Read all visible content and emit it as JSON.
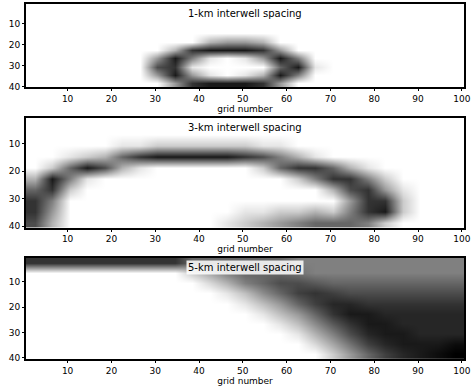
{
  "chart_data": [
    {
      "type": "heatmap",
      "title": "1-km interwell spacing",
      "x_label": "grid number",
      "xlim": [
        0.5,
        100.5
      ],
      "ylim": [
        40.5,
        0.5
      ],
      "xticks": [
        10,
        20,
        30,
        40,
        50,
        60,
        70,
        80,
        90,
        100
      ],
      "yticks": [
        10,
        20,
        30,
        40
      ],
      "zlim": [
        0,
        1
      ],
      "x": [
        2.5,
        6.5,
        10.5,
        14.5,
        18.5,
        22.5,
        26.5,
        30.5,
        34.5,
        38.5,
        42.5,
        46.5,
        50.5,
        54.5,
        58.5,
        62.5,
        66.5,
        70.5,
        74.5,
        78.5,
        82.5,
        86.5,
        90.5,
        94.5,
        98.5
      ],
      "y": [
        2.5,
        6.5,
        10.5,
        14.5,
        18.5,
        22.5,
        26.5,
        30.5,
        34.5,
        38.5
      ],
      "cells": [
        [
          0,
          0,
          0,
          0,
          0,
          0,
          0,
          0,
          0,
          0,
          0,
          0,
          0,
          0,
          0,
          0,
          0,
          0,
          0,
          0,
          0,
          0,
          0,
          0,
          0
        ],
        [
          0,
          0,
          0,
          0,
          0,
          0,
          0,
          0,
          0,
          0,
          0,
          0,
          0,
          0,
          0,
          0,
          0,
          0,
          0,
          0,
          0,
          0,
          0,
          0,
          0
        ],
        [
          0,
          0,
          0,
          0,
          0,
          0,
          0,
          0,
          0,
          0,
          0,
          0,
          0,
          0,
          0,
          0,
          0,
          0,
          0,
          0,
          0,
          0,
          0,
          0,
          0
        ],
        [
          0,
          0,
          0,
          0,
          0,
          0,
          0,
          0,
          0,
          0,
          0,
          0,
          0,
          0,
          0,
          0,
          0,
          0,
          0,
          0,
          0,
          0,
          0,
          0,
          0
        ],
        [
          0,
          0,
          0,
          0,
          0,
          0,
          0,
          0,
          0,
          0,
          0.3,
          0.4,
          0.4,
          0.3,
          0,
          0,
          0,
          0,
          0,
          0,
          0,
          0,
          0,
          0,
          0
        ],
        [
          0,
          0,
          0,
          0,
          0,
          0,
          0,
          0,
          0.3,
          0.8,
          0.9,
          0.9,
          0.9,
          0.8,
          0.4,
          0,
          0,
          0,
          0,
          0,
          0,
          0,
          0,
          0,
          0
        ],
        [
          0,
          0,
          0,
          0,
          0,
          0,
          0,
          0.4,
          0.9,
          0.5,
          0.1,
          0,
          0.1,
          0.4,
          0.9,
          0.5,
          0,
          0,
          0,
          0,
          0,
          0,
          0,
          0,
          0
        ],
        [
          0,
          0,
          0,
          0,
          0,
          0,
          0,
          0.7,
          0.8,
          0.1,
          0,
          0,
          0,
          0,
          0.6,
          0.9,
          0.1,
          0,
          0,
          0,
          0,
          0,
          0,
          0,
          0
        ],
        [
          0,
          0,
          0,
          0,
          0,
          0,
          0,
          0.4,
          0.9,
          0.4,
          0.1,
          0,
          0.1,
          0.3,
          0.9,
          0.5,
          0,
          0,
          0,
          0,
          0,
          0,
          0,
          0,
          0
        ],
        [
          0,
          0,
          0,
          0,
          0,
          0,
          0,
          0,
          0.4,
          0.8,
          0.9,
          0.9,
          0.9,
          0.8,
          0.4,
          0,
          0,
          0,
          0,
          0,
          0,
          0,
          0,
          0,
          0
        ]
      ]
    },
    {
      "type": "heatmap",
      "title": "3-km interwell spacing",
      "x_label": "grid number",
      "xlim": [
        0.5,
        100.5
      ],
      "ylim": [
        40.5,
        0.5
      ],
      "xticks": [
        10,
        20,
        30,
        40,
        50,
        60,
        70,
        80,
        90,
        100
      ],
      "yticks": [
        10,
        20,
        30,
        40
      ],
      "zlim": [
        0,
        1
      ],
      "x": [
        2.5,
        6.5,
        10.5,
        14.5,
        18.5,
        22.5,
        26.5,
        30.5,
        34.5,
        38.5,
        42.5,
        46.5,
        50.5,
        54.5,
        58.5,
        62.5,
        66.5,
        70.5,
        74.5,
        78.5,
        82.5,
        86.5,
        90.5,
        94.5,
        98.5
      ],
      "y": [
        2.5,
        6.5,
        10.5,
        14.5,
        18.5,
        22.5,
        26.5,
        30.5,
        34.5,
        38.5
      ],
      "cells": [
        [
          0,
          0,
          0,
          0,
          0,
          0,
          0,
          0,
          0,
          0,
          0,
          0,
          0,
          0,
          0,
          0,
          0,
          0,
          0,
          0,
          0,
          0,
          0,
          0,
          0
        ],
        [
          0,
          0,
          0,
          0,
          0,
          0,
          0,
          0,
          0,
          0,
          0,
          0,
          0,
          0,
          0,
          0,
          0,
          0,
          0,
          0,
          0,
          0,
          0,
          0,
          0
        ],
        [
          0,
          0,
          0,
          0,
          0,
          0.1,
          0.1,
          0.2,
          0.2,
          0.2,
          0.2,
          0.2,
          0.2,
          0.1,
          0.1,
          0,
          0,
          0,
          0,
          0,
          0,
          0,
          0,
          0,
          0
        ],
        [
          0,
          0,
          0.1,
          0.2,
          0.3,
          0.6,
          0.8,
          0.9,
          0.9,
          0.9,
          0.9,
          0.9,
          0.8,
          0.7,
          0.5,
          0.3,
          0.1,
          0,
          0,
          0,
          0,
          0,
          0,
          0,
          0
        ],
        [
          0,
          0.2,
          0.6,
          0.9,
          0.7,
          0.3,
          0.1,
          0,
          0,
          0,
          0,
          0,
          0,
          0.2,
          0.6,
          0.8,
          0.8,
          0.6,
          0.3,
          0.1,
          0,
          0,
          0,
          0,
          0
        ],
        [
          0.3,
          0.9,
          0.5,
          0.1,
          0,
          0,
          0,
          0,
          0,
          0,
          0,
          0,
          0,
          0,
          0,
          0.2,
          0.5,
          0.8,
          0.8,
          0.5,
          0.2,
          0,
          0,
          0,
          0
        ],
        [
          0.6,
          0.8,
          0.2,
          0,
          0,
          0,
          0,
          0,
          0,
          0,
          0,
          0,
          0,
          0,
          0,
          0,
          0,
          0.3,
          0.7,
          0.8,
          0.4,
          0.1,
          0,
          0,
          0
        ],
        [
          0.8,
          0.5,
          0,
          0,
          0,
          0,
          0,
          0,
          0,
          0,
          0,
          0,
          0,
          0,
          0,
          0,
          0,
          0,
          0.4,
          0.8,
          0.8,
          0.2,
          0,
          0,
          0
        ],
        [
          0.8,
          0.4,
          0,
          0,
          0,
          0,
          0,
          0,
          0,
          0,
          0,
          0,
          0.1,
          0.1,
          0.2,
          0.2,
          0.3,
          0.2,
          0.5,
          0.8,
          0.9,
          0.2,
          0,
          0,
          0
        ],
        [
          0.7,
          0.3,
          0,
          0,
          0,
          0,
          0,
          0,
          0,
          0,
          0,
          0.1,
          0.2,
          0.3,
          0.4,
          0.5,
          0.6,
          0.6,
          0.6,
          0.5,
          0.2,
          0,
          0,
          0,
          0
        ]
      ]
    },
    {
      "type": "heatmap",
      "title": "5-km interwell spacing",
      "x_label": "grid number",
      "xlim": [
        0.5,
        100.5
      ],
      "ylim": [
        40.5,
        0.5
      ],
      "xticks": [
        10,
        20,
        30,
        40,
        50,
        60,
        70,
        80,
        90,
        100
      ],
      "yticks": [
        10,
        20,
        30,
        40
      ],
      "zlim": [
        0,
        1
      ],
      "x": [
        2.5,
        6.5,
        10.5,
        14.5,
        18.5,
        22.5,
        26.5,
        30.5,
        34.5,
        38.5,
        42.5,
        46.5,
        50.5,
        54.5,
        58.5,
        62.5,
        66.5,
        70.5,
        74.5,
        78.5,
        82.5,
        86.5,
        90.5,
        94.5,
        98.5
      ],
      "y": [
        2.5,
        6.5,
        10.5,
        14.5,
        18.5,
        22.5,
        26.5,
        30.5,
        34.5,
        38.5
      ],
      "cells": [
        [
          0.8,
          0.8,
          0.8,
          0.8,
          0.8,
          0.8,
          0.8,
          0.8,
          0.8,
          0.6,
          0.6,
          0.6,
          0.6,
          0.6,
          0.6,
          0.5,
          0.5,
          0.5,
          0.5,
          0.5,
          0.5,
          0.5,
          0.5,
          0.5,
          0.5
        ],
        [
          0,
          0,
          0,
          0,
          0,
          0,
          0,
          0,
          0,
          0.2,
          0.35,
          0.5,
          0.6,
          0.6,
          0.6,
          0.55,
          0.5,
          0.5,
          0.5,
          0.5,
          0.5,
          0.5,
          0.5,
          0.5,
          0.5
        ],
        [
          0,
          0,
          0,
          0,
          0,
          0,
          0,
          0,
          0,
          0,
          0.15,
          0.3,
          0.5,
          0.6,
          0.7,
          0.7,
          0.65,
          0.6,
          0.6,
          0.6,
          0.6,
          0.6,
          0.6,
          0.6,
          0.6
        ],
        [
          0,
          0,
          0,
          0,
          0,
          0,
          0,
          0,
          0,
          0,
          0,
          0.1,
          0.25,
          0.45,
          0.6,
          0.75,
          0.8,
          0.75,
          0.7,
          0.7,
          0.7,
          0.7,
          0.7,
          0.7,
          0.7
        ],
        [
          0,
          0,
          0,
          0,
          0,
          0,
          0,
          0,
          0,
          0,
          0,
          0,
          0.1,
          0.25,
          0.4,
          0.6,
          0.75,
          0.85,
          0.85,
          0.8,
          0.8,
          0.8,
          0.8,
          0.8,
          0.8
        ],
        [
          0,
          0,
          0,
          0,
          0,
          0,
          0,
          0,
          0,
          0,
          0,
          0,
          0,
          0.1,
          0.25,
          0.4,
          0.6,
          0.8,
          0.9,
          0.9,
          0.85,
          0.85,
          0.85,
          0.85,
          0.85
        ],
        [
          0,
          0,
          0,
          0,
          0,
          0,
          0,
          0,
          0,
          0,
          0,
          0,
          0,
          0,
          0.1,
          0.25,
          0.45,
          0.65,
          0.8,
          0.9,
          0.9,
          0.85,
          0.85,
          0.85,
          0.85
        ],
        [
          0,
          0,
          0,
          0,
          0,
          0,
          0,
          0,
          0,
          0,
          0,
          0,
          0,
          0,
          0,
          0.1,
          0.3,
          0.5,
          0.7,
          0.85,
          0.9,
          0.9,
          0.85,
          0.85,
          0.85
        ],
        [
          0,
          0,
          0,
          0,
          0,
          0,
          0,
          0,
          0,
          0,
          0,
          0,
          0,
          0,
          0,
          0,
          0.15,
          0.35,
          0.55,
          0.75,
          0.85,
          0.9,
          0.9,
          0.9,
          0.95
        ],
        [
          0,
          0,
          0,
          0,
          0,
          0,
          0,
          0,
          0,
          0,
          0,
          0,
          0,
          0,
          0,
          0,
          0,
          0.2,
          0.4,
          0.6,
          0.75,
          0.85,
          0.9,
          0.95,
          1
        ]
      ]
    }
  ]
}
